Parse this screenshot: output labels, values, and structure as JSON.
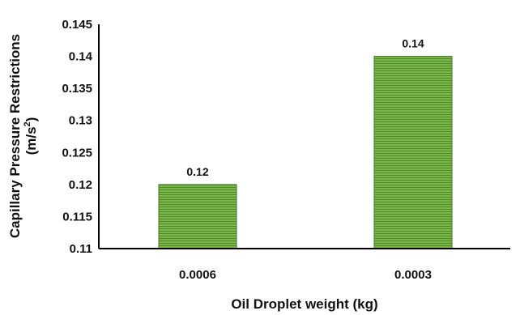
{
  "chart_data": {
    "type": "bar",
    "categories": [
      "0.0006",
      "0.0003"
    ],
    "values": [
      0.12,
      0.14
    ],
    "data_labels": [
      "0.12",
      "0.14"
    ],
    "title": "",
    "xlabel": "Oil Droplet weight (kg)",
    "ylabel_line1": "Capillary Pressure Restrictions",
    "ylabel_unit_base": "(m/s",
    "ylabel_unit_sup": "2",
    "ylabel_unit_close": ")",
    "ylim": [
      0.11,
      0.145
    ],
    "yticks": [
      0.11,
      0.115,
      0.12,
      0.125,
      0.13,
      0.135,
      0.14,
      0.145
    ],
    "ytick_labels": [
      "0.11",
      "0.115",
      "0.12",
      "0.125",
      "0.13",
      "0.135",
      "0.14",
      "0.145"
    ],
    "grid": false,
    "legend": "none",
    "colors": {
      "bar_fill": "#7ab648",
      "bar_stripe": "#4f8a2a",
      "bar_edge": "#3f7a22",
      "axis": "#000000"
    }
  }
}
